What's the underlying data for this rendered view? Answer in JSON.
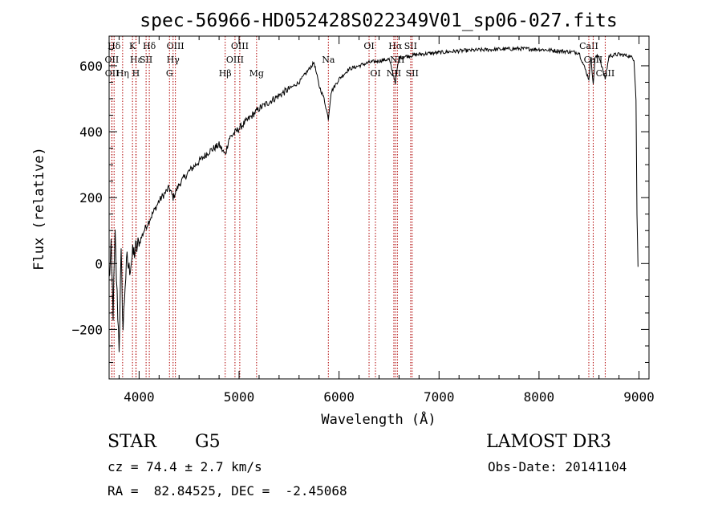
{
  "chart_data": {
    "type": "line",
    "title": "spec-56966-HD052428S022349V01_sp06-027.fits",
    "xlabel": "Wavelength (Å)",
    "ylabel": "Flux (relative)",
    "xlim": [
      3700,
      9100
    ],
    "ylim": [
      -350,
      690
    ],
    "x_ticks": [
      4000,
      5000,
      6000,
      7000,
      8000,
      9000
    ],
    "x_tick_labels": [
      "4000",
      "5000",
      "6000",
      "7000",
      "8000",
      "9000"
    ],
    "y_ticks": [
      -200,
      0,
      200,
      400,
      600
    ],
    "y_tick_labels": [
      "−200",
      "0",
      "200",
      "400",
      "600"
    ],
    "grid": false,
    "series": [
      {
        "name": "flux",
        "x": [
          3700,
          3720,
          3740,
          3760,
          3780,
          3800,
          3820,
          3840,
          3860,
          3880,
          3900,
          3930,
          3960,
          4000,
          4050,
          4100,
          4150,
          4200,
          4250,
          4300,
          4340,
          4400,
          4450,
          4500,
          4600,
          4700,
          4800,
          4861,
          4900,
          5000,
          5100,
          5200,
          5300,
          5400,
          5500,
          5600,
          5700,
          5750,
          5800,
          5850,
          5893,
          5920,
          6000,
          6100,
          6200,
          6300,
          6400,
          6500,
          6563,
          6600,
          6700,
          6800,
          7000,
          7200,
          7400,
          7600,
          7800,
          8000,
          8200,
          8400,
          8498,
          8520,
          8542,
          8560,
          8600,
          8662,
          8700,
          8800,
          8900,
          8950,
          8970,
          8980,
          8990
        ],
        "y": [
          -50,
          40,
          -150,
          80,
          -100,
          -250,
          20,
          -200,
          -60,
          10,
          -20,
          20,
          40,
          60,
          100,
          130,
          160,
          190,
          210,
          230,
          200,
          240,
          260,
          280,
          310,
          340,
          360,
          330,
          380,
          410,
          440,
          470,
          490,
          510,
          530,
          550,
          590,
          610,
          540,
          500,
          440,
          520,
          560,
          590,
          600,
          610,
          615,
          620,
          550,
          625,
          630,
          635,
          640,
          645,
          648,
          650,
          652,
          650,
          645,
          640,
          560,
          630,
          540,
          625,
          630,
          560,
          630,
          635,
          630,
          620,
          500,
          150,
          -10
        ]
      }
    ],
    "line_markers": [
      {
        "label": "Hβ",
        "x": 4861,
        "row": 2
      },
      {
        "label": "Mg",
        "x": 5175,
        "row": 2
      },
      {
        "label": "Na",
        "x": 5893,
        "row": 1
      },
      {
        "label": "OI",
        "x": 6300,
        "row": 0
      },
      {
        "label": "OI",
        "x": 6364,
        "row": 2
      },
      {
        "label": "Hα",
        "x": 6563,
        "row": 0
      },
      {
        "label": "NII",
        "x": 6548,
        "row": 2
      },
      {
        "label": "NII",
        "x": 6583,
        "row": 1
      },
      {
        "label": "SII",
        "x": 6716,
        "row": 0
      },
      {
        "label": "SII",
        "x": 6731,
        "row": 2
      },
      {
        "label": "Hδ",
        "x": 3750,
        "row": 0
      },
      {
        "label": "K",
        "x": 3934,
        "row": 0
      },
      {
        "label": "Hδ",
        "x": 4102,
        "row": 0
      },
      {
        "label": "OII",
        "x": 3727,
        "row": 1
      },
      {
        "label": "OII",
        "x": 3729,
        "row": 2
      },
      {
        "label": "Hε",
        "x": 3970,
        "row": 1
      },
      {
        "label": "Hη",
        "x": 3835,
        "row": 2
      },
      {
        "label": "H",
        "x": 3968,
        "row": 2
      },
      {
        "label": "SII",
        "x": 4070,
        "row": 1
      },
      {
        "label": "OIII",
        "x": 4363,
        "row": 0
      },
      {
        "label": "Hγ",
        "x": 4340,
        "row": 1
      },
      {
        "label": "G",
        "x": 4304,
        "row": 2
      },
      {
        "label": "OIII",
        "x": 5007,
        "row": 0
      },
      {
        "label": "OIII",
        "x": 4959,
        "row": 1
      },
      {
        "label": "CaII",
        "x": 8498,
        "row": 0
      },
      {
        "label": "CaII",
        "x": 8542,
        "row": 1
      },
      {
        "label": "CaII",
        "x": 8662,
        "row": 2
      }
    ]
  },
  "info": {
    "class_label": "STAR",
    "subclass": "G5",
    "survey": "LAMOST DR3",
    "redshift": "cz = 74.4 ± 2.7 km/s",
    "obs_date": "Obs-Date: 20141104",
    "coords": "RA =  82.84525, DEC =  -2.45068"
  }
}
